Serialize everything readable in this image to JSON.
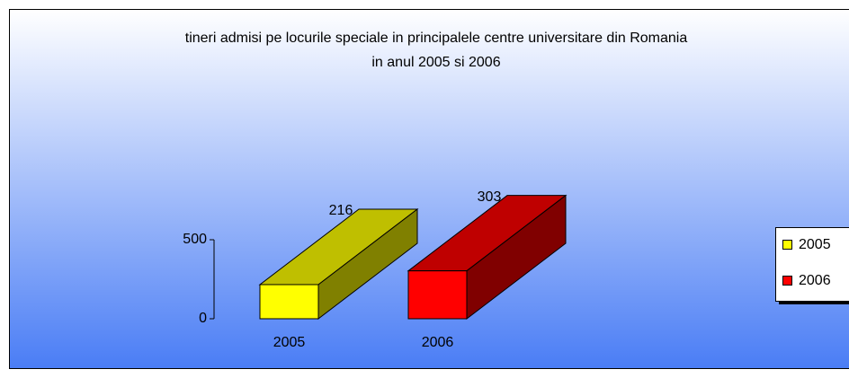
{
  "chart_data": {
    "type": "bar3d",
    "title": [
      "tineri admisi pe locurile speciale in principalele centre universitare din Romania",
      "in anul 2005 si 2006"
    ],
    "categories": [
      "2005",
      "2006"
    ],
    "values": [
      216,
      303
    ],
    "colors": [
      "#ffff00",
      "#ff0000"
    ],
    "ylim": [
      0,
      500
    ],
    "yticks": [
      0,
      500
    ],
    "legend": "right"
  }
}
